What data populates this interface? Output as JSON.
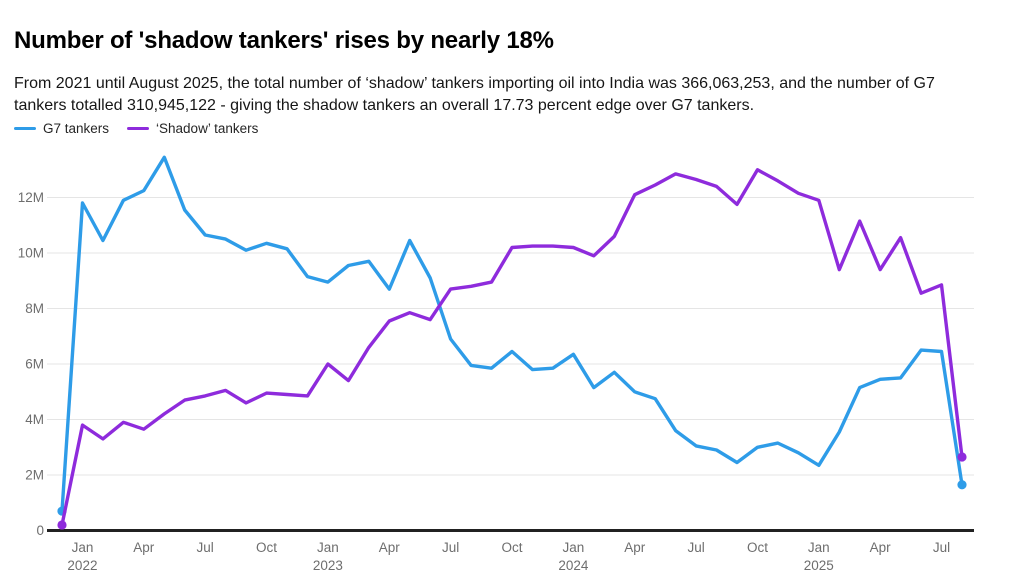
{
  "header": {
    "title": "Number of 'shadow tankers' rises by nearly 18%",
    "subtitle": "From 2021 until August 2025, the total number of ‘shadow’ tankers importing oil into India was 366,063,253, and the number of G7 tankers totalled 310,945,122 - giving the shadow tankers an overall 17.73 percent edge over G7 tankers."
  },
  "legend": {
    "items": [
      {
        "label": "G7 tankers",
        "color": "#2E9CE8"
      },
      {
        "label": "‘Shadow’ tankers",
        "color": "#8E2BDC"
      }
    ]
  },
  "chart_data": {
    "type": "line",
    "title": "Number of 'shadow tankers' rises by nearly 18%",
    "xlabel": "",
    "ylabel": "",
    "values_unit": "millions",
    "ylim": [
      0,
      13.5
    ],
    "grid": true,
    "legend_position": "top-left",
    "endpoint_dots": true,
    "x": [
      "Dec 2021",
      "Jan 2022",
      "Feb 2022",
      "Mar 2022",
      "Apr 2022",
      "May 2022",
      "Jun 2022",
      "Jul 2022",
      "Aug 2022",
      "Sep 2022",
      "Oct 2022",
      "Nov 2022",
      "Dec 2022",
      "Jan 2023",
      "Feb 2023",
      "Mar 2023",
      "Apr 2023",
      "May 2023",
      "Jun 2023",
      "Jul 2023",
      "Aug 2023",
      "Sep 2023",
      "Oct 2023",
      "Nov 2023",
      "Dec 2023",
      "Jan 2024",
      "Feb 2024",
      "Mar 2024",
      "Apr 2024",
      "May 2024",
      "Jun 2024",
      "Jul 2024",
      "Aug 2024",
      "Sep 2024",
      "Oct 2024",
      "Nov 2024",
      "Dec 2024",
      "Jan 2025",
      "Feb 2025",
      "Mar 2025",
      "Apr 2025",
      "May 2025",
      "Jun 2025",
      "Jul 2025",
      "Aug 2025"
    ],
    "series": [
      {
        "id": "g7",
        "name": "G7 tankers",
        "color": "#2E9CE8",
        "values": [
          0.7,
          11.8,
          10.45,
          11.9,
          12.25,
          13.45,
          11.55,
          10.65,
          10.5,
          10.1,
          10.35,
          10.15,
          9.15,
          8.95,
          9.55,
          9.7,
          8.7,
          10.45,
          9.1,
          6.9,
          5.95,
          5.85,
          6.45,
          5.8,
          5.85,
          6.35,
          5.15,
          5.7,
          5.0,
          4.75,
          3.6,
          3.05,
          2.9,
          2.45,
          3.0,
          3.15,
          2.8,
          2.35,
          3.55,
          5.15,
          5.45,
          5.5,
          6.5,
          6.45,
          1.65
        ]
      },
      {
        "id": "shadow",
        "name": "‘Shadow’ tankers",
        "color": "#8E2BDC",
        "values": [
          0.2,
          3.8,
          3.3,
          3.9,
          3.65,
          4.2,
          4.7,
          4.85,
          5.05,
          4.6,
          4.95,
          4.9,
          4.85,
          6.0,
          5.4,
          6.6,
          7.55,
          7.85,
          7.6,
          8.7,
          8.8,
          8.95,
          10.2,
          10.25,
          10.25,
          10.2,
          9.9,
          10.6,
          12.1,
          12.45,
          12.85,
          12.65,
          12.4,
          11.75,
          13.0,
          12.6,
          12.15,
          11.9,
          9.4,
          11.15,
          9.4,
          10.55,
          8.55,
          8.85,
          2.65
        ]
      }
    ],
    "yticks": [
      {
        "v": 0,
        "label": "0"
      },
      {
        "v": 2,
        "label": "2M"
      },
      {
        "v": 4,
        "label": "4M"
      },
      {
        "v": 6,
        "label": "6M"
      },
      {
        "v": 8,
        "label": "8M"
      },
      {
        "v": 10,
        "label": "10M"
      },
      {
        "v": 12,
        "label": "12M"
      }
    ],
    "xticks": [
      {
        "i": 1,
        "label": "Jan",
        "year": "2022"
      },
      {
        "i": 4,
        "label": "Apr"
      },
      {
        "i": 7,
        "label": "Jul"
      },
      {
        "i": 10,
        "label": "Oct"
      },
      {
        "i": 13,
        "label": "Jan",
        "year": "2023"
      },
      {
        "i": 16,
        "label": "Apr"
      },
      {
        "i": 19,
        "label": "Jul"
      },
      {
        "i": 22,
        "label": "Oct"
      },
      {
        "i": 25,
        "label": "Jan",
        "year": "2024"
      },
      {
        "i": 28,
        "label": "Apr"
      },
      {
        "i": 31,
        "label": "Jul"
      },
      {
        "i": 34,
        "label": "Oct"
      },
      {
        "i": 37,
        "label": "Jan",
        "year": "2025"
      },
      {
        "i": 40,
        "label": "Apr"
      },
      {
        "i": 43,
        "label": "Jul"
      }
    ],
    "colors": {
      "axis": "#212121",
      "grid": "#e5e5e5",
      "tick_text": "#6e6e6e"
    }
  }
}
